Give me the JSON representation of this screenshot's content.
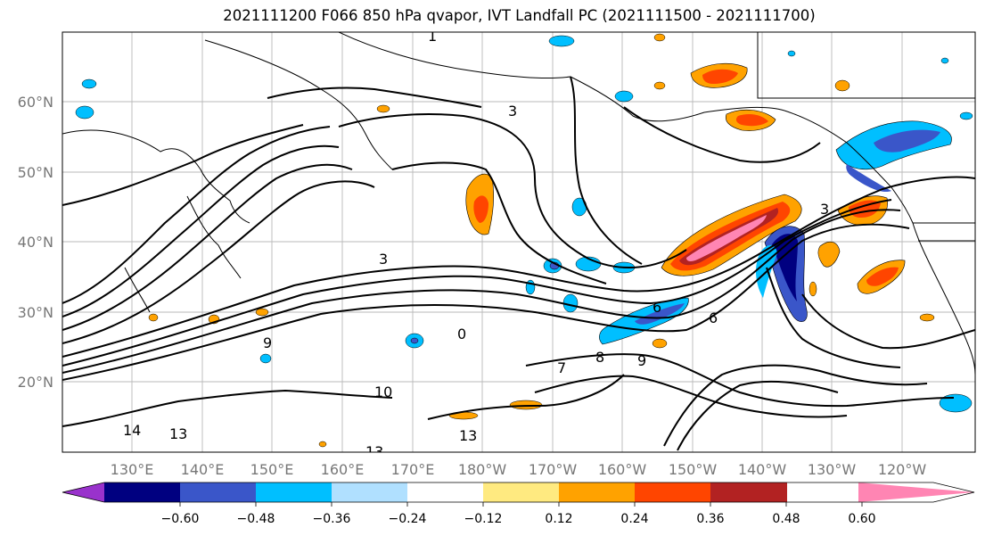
{
  "title": "2021111200 F066 850 hPa qvapor, IVT Landfall PC (2021111500 - 2021111700)",
  "map": {
    "lat_labels": [
      "60°N",
      "50°N",
      "40°N",
      "30°N",
      "20°N"
    ],
    "lon_labels": [
      "130°E",
      "140°E",
      "150°E",
      "160°E",
      "170°E",
      "180°W",
      "170°W",
      "160°W",
      "150°W",
      "140°W",
      "130°W",
      "120°W"
    ],
    "contour_labels": [
      "1",
      "3",
      "3",
      "3",
      "6",
      "6",
      "7",
      "8",
      "9",
      "9",
      "10",
      "13",
      "13",
      "13",
      "14",
      "0"
    ]
  },
  "colorbar": {
    "colors": [
      "#9932cc",
      "#000080",
      "#3a56c9",
      "#00bfff",
      "#b0e0ff",
      "#ffffff",
      "#ffea80",
      "#ffa200",
      "#ff4500",
      "#b22222",
      "#ff85b3"
    ],
    "tick_labels": [
      "−0.60",
      "−0.48",
      "−0.36",
      "−0.24",
      "−0.12",
      "0.12",
      "0.24",
      "0.36",
      "0.48",
      "0.60"
    ]
  }
}
